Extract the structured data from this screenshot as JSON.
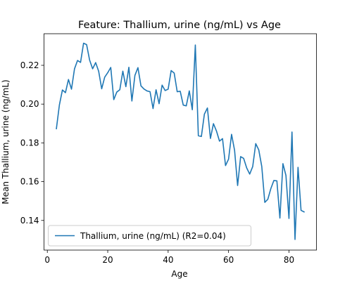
{
  "chart_data": {
    "type": "line",
    "title": "Feature: Thallium, urine (ng/mL) vs Age",
    "xlabel": "Age",
    "ylabel": "Mean Thallium, urine (ng/mL)",
    "xlim": [
      -1.1,
      89.1
    ],
    "ylim": [
      0.1247,
      0.2363
    ],
    "xticks": [
      0,
      20,
      40,
      60,
      80
    ],
    "yticks": [
      0.14,
      0.16,
      0.18,
      0.2,
      0.22
    ],
    "xtick_labels": [
      "0",
      "20",
      "40",
      "60",
      "80"
    ],
    "ytick_labels": [
      "0.14",
      "0.16",
      "0.18",
      "0.20",
      "0.22"
    ],
    "grid": false,
    "legend_position": "lower-left",
    "series": [
      {
        "name": "Thallium, urine (ng/mL) (R2=0.04)",
        "color": "#1f77b4",
        "x": [
          3,
          4,
          5,
          6,
          7,
          8,
          9,
          10,
          11,
          12,
          13,
          14,
          15,
          16,
          17,
          18,
          19,
          20,
          21,
          22,
          23,
          24,
          25,
          26,
          27,
          28,
          29,
          30,
          31,
          32,
          33,
          34,
          35,
          36,
          37,
          38,
          39,
          40,
          41,
          42,
          43,
          44,
          45,
          46,
          47,
          48,
          49,
          50,
          51,
          52,
          53,
          54,
          55,
          56,
          57,
          58,
          59,
          60,
          61,
          62,
          63,
          64,
          65,
          66,
          67,
          68,
          69,
          70,
          71,
          72,
          73,
          74,
          75,
          76,
          77,
          78,
          79,
          80,
          81,
          82,
          83,
          84,
          85
        ],
        "y": [
          0.1873,
          0.1996,
          0.2073,
          0.2059,
          0.2127,
          0.2077,
          0.2182,
          0.2225,
          0.2215,
          0.2314,
          0.2307,
          0.2227,
          0.2182,
          0.2214,
          0.2169,
          0.2079,
          0.2139,
          0.2162,
          0.2189,
          0.2023,
          0.2062,
          0.2074,
          0.217,
          0.209,
          0.219,
          0.2016,
          0.2148,
          0.2188,
          0.2094,
          0.2078,
          0.2068,
          0.2064,
          0.1977,
          0.2074,
          0.2002,
          0.2098,
          0.207,
          0.2077,
          0.2173,
          0.216,
          0.2064,
          0.2066,
          0.1995,
          0.1991,
          0.2068,
          0.1971,
          0.2305,
          0.1837,
          0.1833,
          0.1948,
          0.198,
          0.1823,
          0.1899,
          0.1861,
          0.1809,
          0.1822,
          0.1683,
          0.1716,
          0.1844,
          0.1761,
          0.158,
          0.1729,
          0.172,
          0.1671,
          0.1639,
          0.1678,
          0.1796,
          0.1764,
          0.1678,
          0.1493,
          0.1509,
          0.1564,
          0.1606,
          0.1604,
          0.1412,
          0.1693,
          0.1632,
          0.141,
          0.1856,
          0.1302,
          0.1674,
          0.1452,
          0.1444
        ]
      }
    ]
  }
}
